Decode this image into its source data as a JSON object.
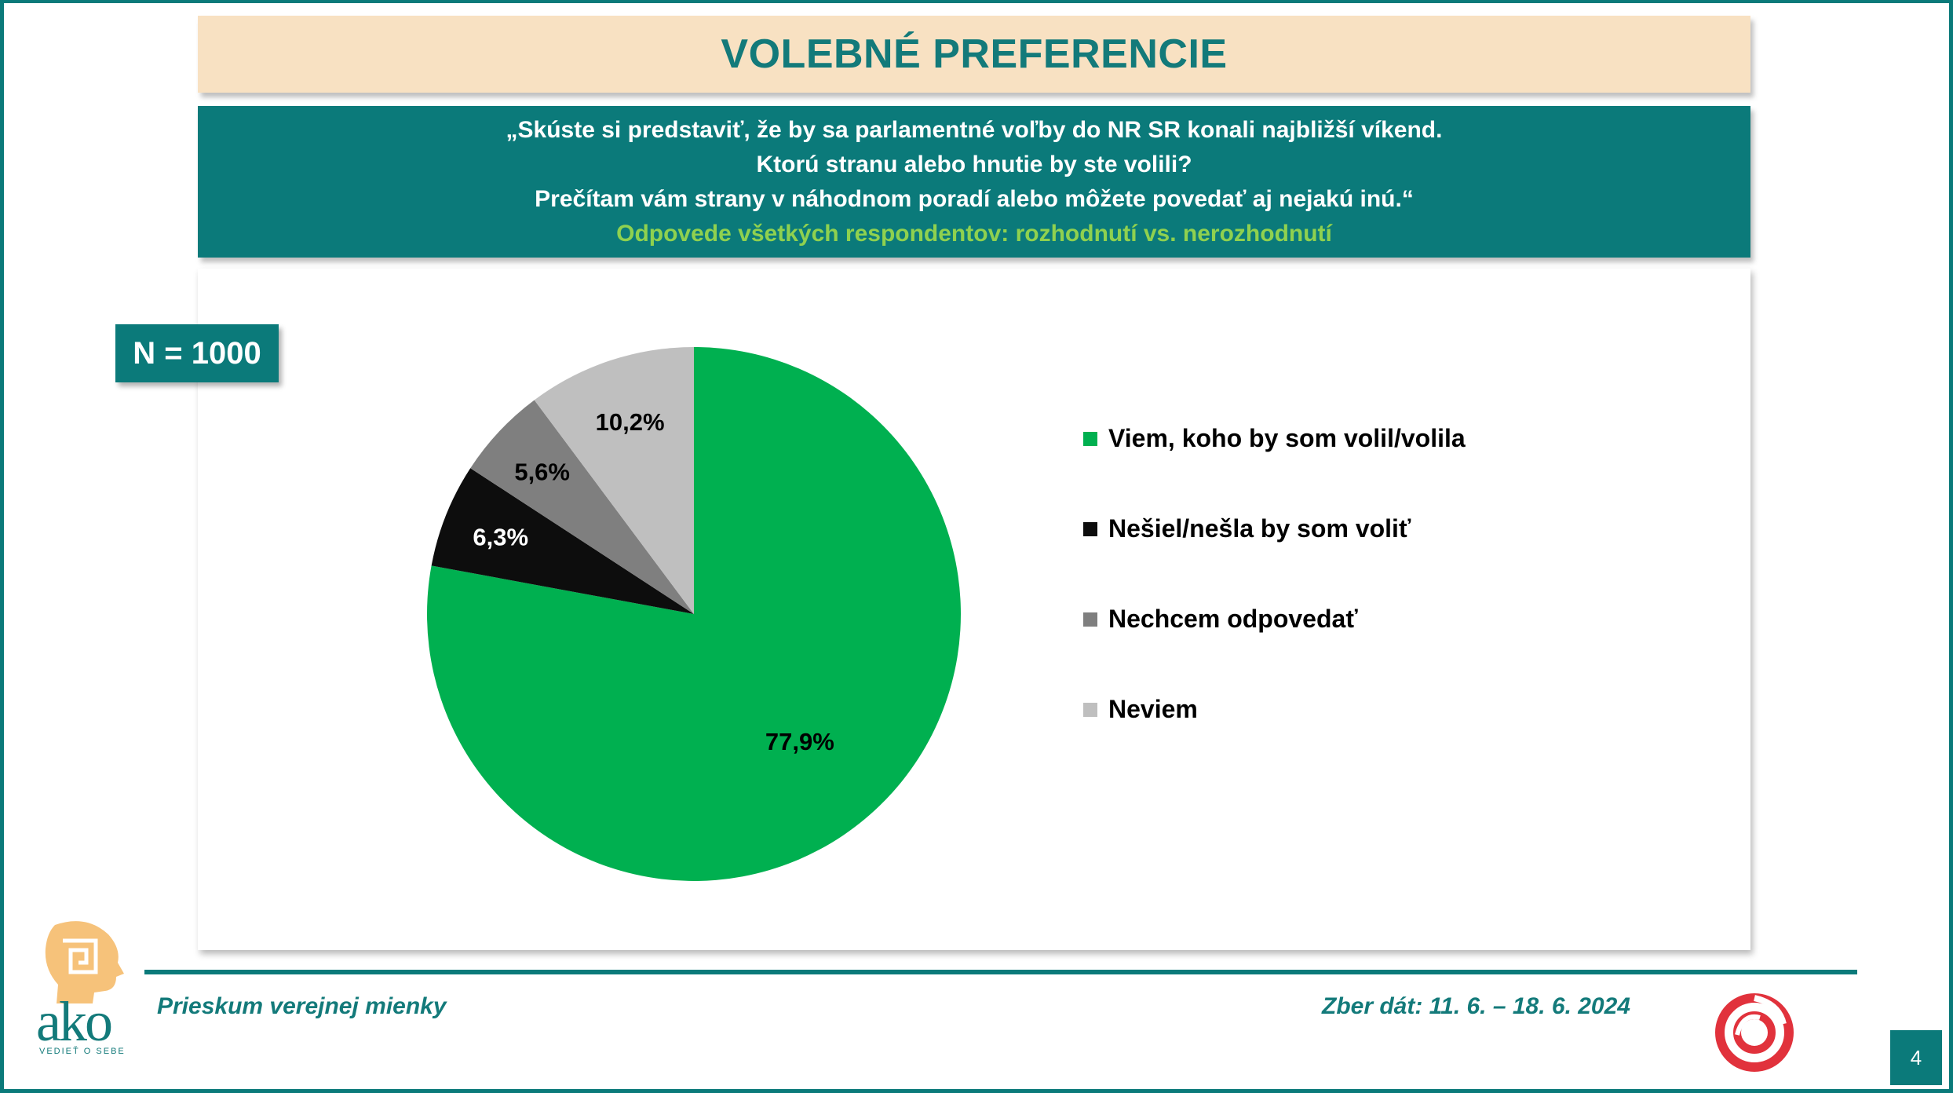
{
  "title": "VOLEBNÉ PREFERENCIE",
  "question": {
    "lines": [
      "„Skúste si predstaviť, že by sa parlamentné voľby do NR SR konali najbližší víkend.",
      "Ktorú stranu alebo hnutie by ste volili?",
      "Prečítam vám strany v náhodnom poradí alebo môžete povedať aj nejakú inú.“"
    ],
    "subtitle": "Odpovede všetkých respondentov: rozhodnutí vs. nerozhodnutí"
  },
  "sample_badge": "N = 1000",
  "chart_data": {
    "type": "pie",
    "title": "",
    "legend_position": "right",
    "categories": [
      "Viem, koho by som volil/volila",
      "Nešiel/nešla by som voliť",
      "Nechcem odpovedať",
      "Neviem"
    ],
    "values": [
      77.9,
      6.3,
      5.6,
      10.2
    ],
    "value_labels": [
      "77,9%",
      "6,3%",
      "5,6%",
      "10,2%"
    ],
    "colors": [
      "#00b050",
      "#0d0d0d",
      "#7f7f7f",
      "#bfbfbf"
    ],
    "label_colors": [
      "#000000",
      "#ffffff",
      "#000000",
      "#000000"
    ]
  },
  "footer": {
    "left": "Prieskum verejnej mienky",
    "right": "Zber dát: 11. 6. – 18. 6. 2024"
  },
  "logo": {
    "text": "ako",
    "tagline": "VEDIEŤ O SEBE",
    "icon": "head-maze-icon",
    "partner_icon": "red-swirl-logo-icon"
  },
  "page_number": "4"
}
